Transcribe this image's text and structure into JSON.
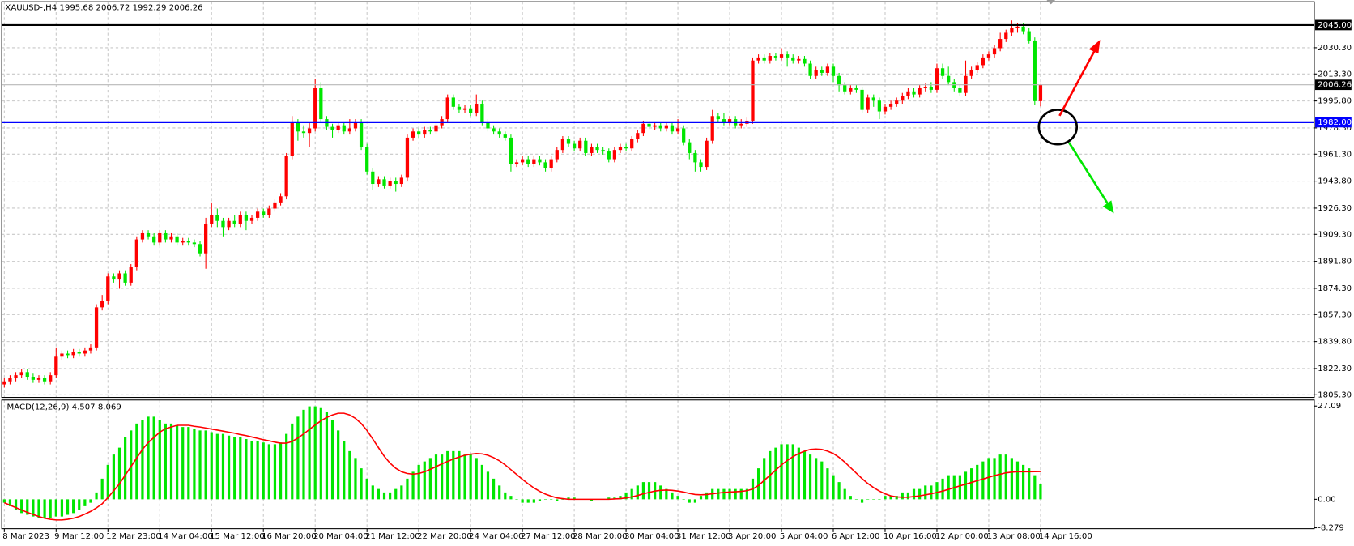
{
  "chart_data": [
    {
      "type": "candlestick",
      "title": "XAUUSD-,H4  1995.68 2006.72 1992.29 2006.26",
      "open": [
        1812,
        1814,
        1816,
        1818,
        1820,
        1817,
        1815,
        1816,
        1814,
        1818,
        1830,
        1832,
        1831,
        1833,
        1832,
        1834,
        1836,
        1862,
        1866,
        1882,
        1880,
        1884,
        1878,
        1888,
        1906,
        1910,
        1908,
        1904,
        1910,
        1906,
        1908,
        1904,
        1905,
        1904,
        1903,
        1897,
        1916,
        1922,
        1918,
        1914,
        1918,
        1916,
        1922,
        1918,
        1920,
        1924,
        1922,
        1926,
        1930,
        1934,
        1960,
        1982,
        1976,
        1975,
        1978,
        2004,
        1984,
        1979,
        1977,
        1980,
        1976,
        1978,
        1982,
        1966,
        1950,
        1942,
        1945,
        1941,
        1944,
        1942,
        1946,
        1972,
        1976,
        1974,
        1977,
        1976,
        1980,
        1984,
        1998,
        1992,
        1990,
        1991,
        1988,
        1994,
        1982,
        1978,
        1976,
        1974,
        1972,
        1955,
        1956,
        1958,
        1955,
        1958,
        1956,
        1952,
        1958,
        1964,
        1971,
        1968,
        1965,
        1970,
        1962,
        1966,
        1964,
        1963,
        1958,
        1964,
        1966,
        1965,
        1971,
        1975,
        1981,
        1979,
        1980,
        1978,
        1980,
        1976,
        1978,
        1969,
        1962,
        1956,
        1953,
        1970,
        1986,
        1984,
        1982,
        1984,
        1980,
        1981,
        1983,
        2022,
        2024,
        2022,
        2025,
        2024,
        2026,
        2024,
        2022,
        2023,
        2020,
        2012,
        2016,
        2014,
        2018,
        2012,
        2006,
        2002,
        2004,
        2003,
        1990,
        1998,
        1996,
        1989,
        1992,
        1994,
        1996,
        1999,
        2002,
        2000,
        2004,
        2005,
        2003,
        2017,
        2012,
        2008,
        2004,
        2001,
        2012,
        2016,
        2019,
        2024,
        2026,
        2030,
        2036,
        2040,
        2043,
        2044,
        2041,
        2035,
        1995.68
      ],
      "high": [
        1816,
        1818,
        1820,
        1822,
        1822,
        1819,
        1818,
        1818,
        1820,
        1836,
        1834,
        1834,
        1835,
        1835,
        1836,
        1838,
        1864,
        1870,
        1884,
        1884,
        1886,
        1886,
        1890,
        1908,
        1912,
        1912,
        1910,
        1912,
        1912,
        1910,
        1910,
        1907,
        1907,
        1906,
        1905,
        1920,
        1930,
        1926,
        1920,
        1920,
        1922,
        1924,
        1924,
        1922,
        1926,
        1926,
        1928,
        1932,
        1936,
        1962,
        1986,
        1984,
        1980,
        1982,
        2010,
        2008,
        1986,
        1981,
        1982,
        1982,
        1984,
        1984,
        1984,
        1968,
        1952,
        1947,
        1947,
        1946,
        1946,
        1948,
        1974,
        1978,
        1978,
        1979,
        1979,
        1982,
        1986,
        2000,
        2000,
        1994,
        1993,
        1993,
        2000,
        1996,
        1984,
        1980,
        1978,
        1976,
        1974,
        1958,
        1960,
        1960,
        1960,
        1960,
        1958,
        1960,
        1966,
        1973,
        1973,
        1970,
        1972,
        1972,
        1968,
        1968,
        1966,
        1965,
        1966,
        1968,
        1968,
        1973,
        1977,
        1983,
        1983,
        1982,
        1982,
        1982,
        1982,
        1984,
        1980,
        1971,
        1964,
        1958,
        1972,
        1990,
        1988,
        1988,
        1986,
        1986,
        1984,
        1985,
        2024,
        2026,
        2026,
        2027,
        2027,
        2030,
        2028,
        2026,
        2025,
        2025,
        2022,
        2018,
        2018,
        2020,
        2020,
        2014,
        2008,
        2006,
        2006,
        2005,
        2000,
        2000,
        1998,
        1994,
        1996,
        1998,
        2001,
        2004,
        2004,
        2006,
        2007,
        2008,
        2020,
        2020,
        2018,
        2010,
        2006,
        2022,
        2018,
        2021,
        2026,
        2028,
        2032,
        2040,
        2042,
        2048,
        2046,
        2046,
        2043,
        2037,
        2006.72
      ],
      "low": [
        1810,
        1812,
        1814,
        1816,
        1815,
        1813,
        1813,
        1812,
        1812,
        1816,
        1828,
        1829,
        1829,
        1830,
        1830,
        1832,
        1834,
        1860,
        1864,
        1878,
        1874,
        1876,
        1876,
        1886,
        1904,
        1906,
        1902,
        1902,
        1904,
        1904,
        1902,
        1902,
        1902,
        1901,
        1895,
        1887,
        1914,
        1914,
        1908,
        1912,
        1914,
        1914,
        1912,
        1916,
        1918,
        1920,
        1920,
        1924,
        1928,
        1932,
        1958,
        1970,
        1972,
        1966,
        1976,
        1982,
        1977,
        1972,
        1975,
        1974,
        1974,
        1976,
        1964,
        1948,
        1938,
        1940,
        1939,
        1939,
        1937,
        1940,
        1944,
        1970,
        1972,
        1972,
        1974,
        1974,
        1978,
        1982,
        1990,
        1988,
        1988,
        1986,
        1986,
        1980,
        1976,
        1974,
        1972,
        1970,
        1950,
        1953,
        1954,
        1953,
        1953,
        1954,
        1950,
        1950,
        1956,
        1962,
        1966,
        1963,
        1963,
        1960,
        1960,
        1962,
        1961,
        1956,
        1956,
        1962,
        1963,
        1963,
        1969,
        1973,
        1977,
        1977,
        1976,
        1976,
        1974,
        1974,
        1967,
        1958,
        1950,
        1950,
        1951,
        1968,
        1982,
        1980,
        1980,
        1978,
        1978,
        1979,
        1981,
        2020,
        2020,
        2020,
        2022,
        2022,
        2018,
        2020,
        2020,
        2018,
        2010,
        2010,
        2012,
        2012,
        2008,
        2002,
        2000,
        2000,
        2001,
        1988,
        1988,
        1992,
        1984,
        1987,
        1990,
        1992,
        1994,
        1997,
        1998,
        1998,
        2002,
        2001,
        2001,
        2010,
        2006,
        2002,
        1999,
        1999,
        2010,
        2014,
        2017,
        2022,
        2024,
        2028,
        2034,
        2038,
        2040,
        2039,
        2033,
        1993,
        1992.29
      ],
      "close": [
        1814,
        1816,
        1818,
        1820,
        1817,
        1815,
        1816,
        1814,
        1818,
        1830,
        1832,
        1831,
        1833,
        1832,
        1834,
        1836,
        1862,
        1866,
        1882,
        1880,
        1884,
        1878,
        1888,
        1906,
        1910,
        1908,
        1904,
        1910,
        1906,
        1908,
        1904,
        1905,
        1904,
        1903,
        1897,
        1916,
        1922,
        1918,
        1914,
        1918,
        1916,
        1922,
        1918,
        1920,
        1924,
        1922,
        1926,
        1930,
        1934,
        1960,
        1982,
        1976,
        1975,
        1978,
        2004,
        1984,
        1979,
        1977,
        1980,
        1976,
        1978,
        1982,
        1966,
        1950,
        1942,
        1945,
        1941,
        1944,
        1942,
        1946,
        1972,
        1976,
        1974,
        1977,
        1976,
        1980,
        1984,
        1998,
        1992,
        1990,
        1991,
        1988,
        1994,
        1982,
        1978,
        1976,
        1974,
        1972,
        1955,
        1956,
        1958,
        1955,
        1958,
        1956,
        1952,
        1958,
        1964,
        1971,
        1968,
        1965,
        1970,
        1962,
        1966,
        1964,
        1963,
        1958,
        1964,
        1966,
        1965,
        1971,
        1975,
        1981,
        1979,
        1980,
        1978,
        1980,
        1976,
        1978,
        1969,
        1962,
        1956,
        1953,
        1970,
        1986,
        1984,
        1982,
        1984,
        1980,
        1981,
        1983,
        2022,
        2024,
        2022,
        2025,
        2024,
        2026,
        2024,
        2022,
        2023,
        2020,
        2012,
        2016,
        2014,
        2018,
        2012,
        2006,
        2002,
        2004,
        2003,
        1990,
        1998,
        1996,
        1989,
        1992,
        1994,
        1996,
        1999,
        2002,
        2000,
        2004,
        2005,
        2003,
        2017,
        2012,
        2008,
        2004,
        2001,
        2012,
        2016,
        2019,
        2024,
        2026,
        2030,
        2036,
        2040,
        2043,
        2044,
        2041,
        2035,
        1995.68,
        2006.26
      ],
      "up_color": "#ff0000",
      "down_color": "#00e600",
      "xlim": [
        -0.45,
        227.55
      ],
      "xticks": [
        {
          "value": 0,
          "label": "8 Mar 2023"
        },
        {
          "value": 9,
          "label": "9 Mar 12:00"
        },
        {
          "value": 18,
          "label": "12 Mar 23:00"
        },
        {
          "value": 27,
          "label": "14 Mar 04:00"
        },
        {
          "value": 36,
          "label": "15 Mar 12:00"
        },
        {
          "value": 45,
          "label": "16 Mar 20:00"
        },
        {
          "value": 54,
          "label": "20 Mar 04:00"
        },
        {
          "value": 63,
          "label": "21 Mar 12:00"
        },
        {
          "value": 72,
          "label": "22 Mar 20:00"
        },
        {
          "value": 81,
          "label": "24 Mar 04:00"
        },
        {
          "value": 90,
          "label": "27 Mar 12:00"
        },
        {
          "value": 99,
          "label": "28 Mar 20:00"
        },
        {
          "value": 108,
          "label": "30 Mar 04:00"
        },
        {
          "value": 117,
          "label": "31 Mar 12:00"
        },
        {
          "value": 126,
          "label": "3 Apr 20:00"
        },
        {
          "value": 135,
          "label": "5 Apr 04:00"
        },
        {
          "value": 144,
          "label": "6 Apr 12:00"
        },
        {
          "value": 153,
          "label": "10 Apr 16:00"
        },
        {
          "value": 162,
          "label": "12 Apr 00:00"
        },
        {
          "value": 171,
          "label": "13 Apr 08:00"
        },
        {
          "value": 180,
          "label": "14 Apr 16:00"
        }
      ],
      "ylim": [
        1803.6,
        2060.1
      ],
      "yticks": [
        {
          "value": 2030.3,
          "label": "2030.30"
        },
        {
          "value": 2013.3,
          "label": "2013.30"
        },
        {
          "value": 1995.8,
          "label": "1995.80"
        },
        {
          "value": 1978.3,
          "label": "1978.30"
        },
        {
          "value": 1961.3,
          "label": "1961.30"
        },
        {
          "value": 1943.8,
          "label": "1943.80"
        },
        {
          "value": 1926.3,
          "label": "1926.30"
        },
        {
          "value": 1909.3,
          "label": "1909.30"
        },
        {
          "value": 1891.8,
          "label": "1891.80"
        },
        {
          "value": 1874.3,
          "label": "1874.30"
        },
        {
          "value": 1857.3,
          "label": "1857.30"
        },
        {
          "value": 1839.8,
          "label": "1839.80"
        },
        {
          "value": 1822.3,
          "label": "1822.30"
        },
        {
          "value": 1805.3,
          "label": "1805.30"
        }
      ],
      "grid": true,
      "price_lines": [
        {
          "value": 2045,
          "label": "2045.00",
          "color": "#000000",
          "label_color": "#000000"
        },
        {
          "value": 2006.26,
          "label": "2006.26",
          "color": "#b8b8b8",
          "label_color": "#000000"
        },
        {
          "value": 1982,
          "label": "1982.00",
          "color": "#0000ff",
          "label_color": "#0000ff"
        }
      ]
    },
    {
      "type": "macd",
      "title": "MACD(12,26,9) 4.507 8.069",
      "histogram": [
        -1,
        -2,
        -3,
        -4,
        -4.5,
        -5,
        -5.5,
        -5.5,
        -5.5,
        -5,
        -5,
        -4.5,
        -4,
        -3,
        -2,
        -1,
        2,
        6,
        10,
        13,
        15,
        18,
        20,
        22,
        23,
        24,
        24,
        23,
        22,
        22,
        21.5,
        21,
        21,
        20.5,
        20,
        20,
        19.5,
        19,
        19,
        18.5,
        18,
        18,
        17.5,
        17,
        17,
        16.5,
        16,
        16,
        16.5,
        19,
        22,
        24,
        26,
        27,
        27,
        26.5,
        25.5,
        23,
        20,
        17,
        14,
        12,
        9,
        6,
        4,
        3,
        2,
        2,
        3,
        4,
        6,
        8,
        10,
        11,
        12,
        13,
        13,
        14,
        14,
        14,
        13,
        13,
        12,
        10,
        8,
        6,
        4,
        2,
        1,
        0,
        -1,
        -1,
        -1,
        -0.5,
        0,
        0,
        -0.5,
        0,
        0.5,
        0.5,
        0,
        0,
        -0.5,
        0,
        0,
        0.5,
        0.5,
        1,
        2,
        3,
        4,
        5,
        5,
        5,
        4,
        3,
        2,
        1,
        0,
        -1,
        -1,
        1,
        2,
        3,
        3,
        3,
        3,
        3,
        3,
        3,
        6,
        9,
        12,
        14,
        15,
        16,
        16,
        16,
        15,
        14,
        13,
        12,
        11,
        9,
        7,
        5,
        3,
        1,
        0,
        -1,
        0,
        0,
        0,
        1,
        1,
        1,
        2,
        2,
        3,
        3,
        4,
        4,
        5,
        6,
        7,
        7,
        7,
        8,
        9,
        10,
        11,
        12,
        12,
        13,
        13,
        12,
        11,
        10,
        9,
        7,
        4.507
      ],
      "histogram_color": "#00e600",
      "signal": [
        -1,
        -1.7,
        -2.4,
        -3.1,
        -3.8,
        -4.4,
        -5,
        -5.5,
        -5.8,
        -6,
        -6,
        -5.8,
        -5.5,
        -5,
        -4.3,
        -3.5,
        -2.5,
        -1.3,
        0.5,
        2.5,
        4.5,
        7,
        9.5,
        12,
        14.5,
        16.5,
        18,
        19.5,
        20.5,
        21,
        21.5,
        21.5,
        21.5,
        21.2,
        21,
        20.7,
        20.4,
        20.1,
        19.8,
        19.5,
        19.2,
        18.8,
        18.5,
        18.1,
        17.7,
        17.3,
        17,
        16.6,
        16.3,
        16.3,
        16.8,
        17.8,
        19,
        20.3,
        21.6,
        22.8,
        23.8,
        24.5,
        25,
        25,
        24.5,
        23.5,
        22,
        20,
        17.5,
        15,
        12.5,
        10.5,
        9,
        8,
        7.5,
        7.3,
        7.5,
        8,
        8.7,
        9.5,
        10.3,
        11,
        11.7,
        12.3,
        12.8,
        13.1,
        13.3,
        13.2,
        12.8,
        12.1,
        11.2,
        10,
        8.6,
        7.2,
        5.8,
        4.5,
        3.3,
        2.3,
        1.5,
        0.9,
        0.4,
        0.2,
        0,
        0,
        0,
        0,
        0,
        0,
        0,
        0,
        0.1,
        0.2,
        0.4,
        0.7,
        1.1,
        1.6,
        2,
        2.4,
        2.6,
        2.7,
        2.6,
        2.4,
        2.1,
        1.7,
        1.4,
        1.3,
        1.4,
        1.6,
        1.8,
        2,
        2.1,
        2.2,
        2.3,
        2.5,
        3,
        4,
        5.5,
        7,
        8.5,
        10,
        11.3,
        12.4,
        13.3,
        14,
        14.5,
        14.6,
        14.5,
        14,
        13.3,
        12.2,
        10.8,
        9.2,
        7.6,
        6,
        4.6,
        3.4,
        2.4,
        1.6,
        1,
        0.7,
        0.6,
        0.6,
        0.8,
        1,
        1.3,
        1.6,
        2,
        2.4,
        2.9,
        3.4,
        3.9,
        4.4,
        4.9,
        5.4,
        5.9,
        6.4,
        6.9,
        7.3,
        7.7,
        7.9,
        8,
        8,
        8,
        8.05,
        8.069
      ],
      "signal_color": "#ff0000",
      "ylim": [
        -8.53,
        28.85
      ],
      "yticks": [
        27.09,
        {
          "value": 0,
          "label": "0.00"
        },
        -8.279
      ]
    }
  ]
}
